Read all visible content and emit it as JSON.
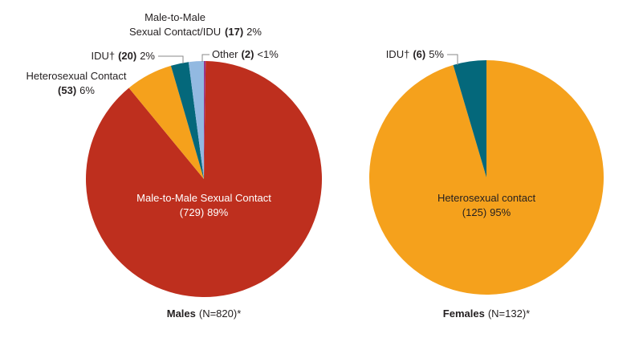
{
  "chart_data": [
    {
      "type": "pie",
      "label": "Males",
      "n_label": "(N=820)*",
      "categories": [
        "Other",
        "Male-to-Male Sexual Contact",
        "Heterosexual Contact",
        "IDU†",
        "Male-to-Male Sexual Contact/IDU"
      ],
      "values": [
        2,
        729,
        53,
        20,
        17
      ],
      "value_labels": [
        "(2)",
        "(729)",
        "(53)",
        "(20)",
        "(17)"
      ],
      "percent_labels": [
        "<1%",
        "89%",
        "6%",
        "2%",
        "2%"
      ],
      "colors": [
        "#9c3587",
        "#be2f1e",
        "#f5a11c",
        "#04687b",
        "#92b9e1"
      ]
    },
    {
      "type": "pie",
      "label": "Females",
      "n_label": "(N=132)*",
      "categories": [
        "Heterosexual contact",
        "IDU†"
      ],
      "values": [
        125,
        6
      ],
      "value_labels": [
        "(125)",
        "(6)"
      ],
      "percent_labels": [
        "95%",
        "5%"
      ],
      "colors": [
        "#f5a11c",
        "#04687b"
      ]
    }
  ]
}
